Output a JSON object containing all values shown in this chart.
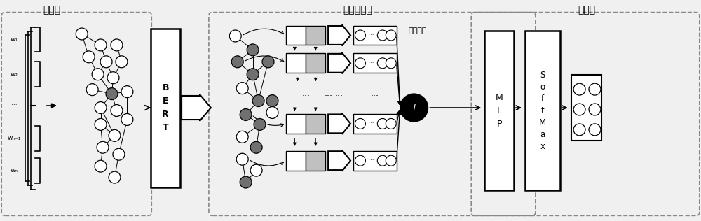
{
  "title_graph": "图构建",
  "title_embed": "图嵌入学习",
  "title_classifier": "分类器",
  "label_bert": "B\nE\nR\nT",
  "label_avgpool": "平均池化",
  "label_mlp": "M\nL\nP",
  "label_softmax": "S\no\nf\nt\nM\na\nx",
  "label_f": "f",
  "w_labels": [
    "w₁",
    "w₂",
    "···",
    "wₙ₋₁",
    "wₙ"
  ],
  "bg_color": "#f0f0f0",
  "box_color": "#ffffff",
  "dark_node_color": "#707070",
  "light_node_color": "#ffffff",
  "gray_box_color": "#c0c0c0",
  "dashed_box_color": "#888888",
  "text_color": "#000000"
}
